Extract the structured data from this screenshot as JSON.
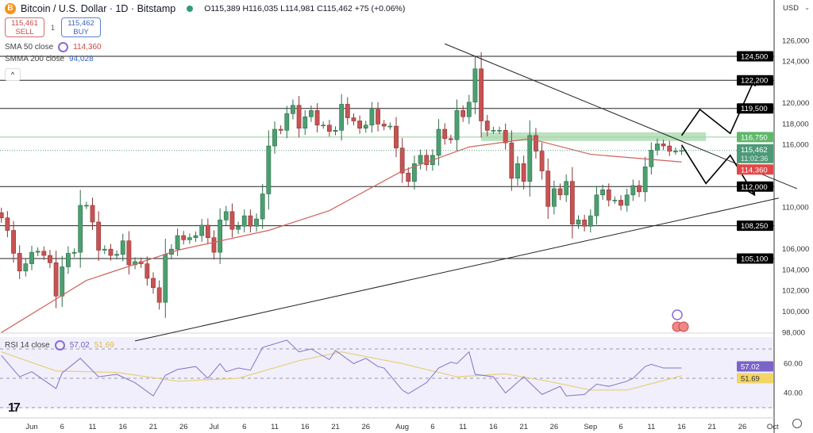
{
  "header": {
    "coin_glyph": "B",
    "title": "Bitcoin / U.S. Dollar · 1D · Bitstamp",
    "ohlc": "O115,389 H116,035 L114,981 C115,462 +75 (+0.06%)",
    "sell_price": "115,461",
    "sell_label": "SELL",
    "quantity": "1",
    "buy_price": "115,462",
    "buy_label": "BUY",
    "market_status_color": "#2e9c7a"
  },
  "indicators": {
    "sma50_label": "SMA 50 close",
    "sma50_value": "114,360",
    "smma200_label": "SMMA 200 close",
    "smma200_value": "94,028",
    "rsi_label": "RSI 14 close",
    "rsi_value": "57.02",
    "rsi_ma_value": "51.69"
  },
  "axis": {
    "currency": "USD"
  },
  "colors": {
    "up": "#4c9f70",
    "down": "#c65353",
    "sma50": "#d0625c",
    "rsi": "#7e75c7",
    "rsi_ma": "#e8cf7a",
    "support_band": "#9fd4a4"
  },
  "chart_data": {
    "type": "candlestick",
    "title": "Bitcoin / U.S. Dollar · 1D · Bitstamp",
    "ylim": [
      97000,
      128000
    ],
    "y_ticks": [
      "126,000",
      "124,000",
      "120,000",
      "118,000",
      "116,000",
      "110,000",
      "106,000",
      "104,000",
      "102,000",
      "100,000",
      "98,000"
    ],
    "x_ticks": [
      "Jun",
      "6",
      "11",
      "16",
      "21",
      "26",
      "Jul",
      "6",
      "11",
      "16",
      "21",
      "26",
      "Aug",
      "6",
      "11",
      "16",
      "21",
      "26",
      "Sep",
      "6",
      "11",
      "16",
      "21",
      "26",
      "Oct"
    ],
    "close": [
      [
        "05-27",
        109.0
      ],
      [
        "05-28",
        107.8
      ],
      [
        "05-29",
        105.6
      ],
      [
        "05-30",
        103.9
      ],
      [
        "05-31",
        104.6
      ],
      [
        "06-01",
        105.7
      ],
      [
        "06-02",
        105.8
      ],
      [
        "06-03",
        105.4
      ],
      [
        "06-04",
        104.7
      ],
      [
        "06-05",
        101.5
      ],
      [
        "06-06",
        104.3
      ],
      [
        "06-07",
        105.6
      ],
      [
        "06-08",
        105.7
      ],
      [
        "06-09",
        110.2
      ],
      [
        "06-10",
        110.2
      ],
      [
        "06-11",
        108.6
      ],
      [
        "06-12",
        105.9
      ],
      [
        "06-13",
        106.0
      ],
      [
        "06-14",
        105.4
      ],
      [
        "06-15",
        105.5
      ],
      [
        "06-16",
        106.8
      ],
      [
        "06-17",
        104.5
      ],
      [
        "06-18",
        104.8
      ],
      [
        "06-19",
        104.6
      ],
      [
        "06-20",
        103.2
      ],
      [
        "06-21",
        102.3
      ],
      [
        "06-22",
        100.9
      ],
      [
        "06-23",
        105.5
      ],
      [
        "06-24",
        106.0
      ],
      [
        "06-25",
        107.3
      ],
      [
        "06-26",
        106.9
      ],
      [
        "06-27",
        107.1
      ],
      [
        "06-28",
        107.3
      ],
      [
        "06-29",
        108.3
      ],
      [
        "06-30",
        107.1
      ],
      [
        "07-01",
        105.7
      ],
      [
        "07-02",
        108.8
      ],
      [
        "07-03",
        109.6
      ],
      [
        "07-04",
        107.9
      ],
      [
        "07-05",
        108.2
      ],
      [
        "07-06",
        109.2
      ],
      [
        "07-07",
        108.2
      ],
      [
        "07-08",
        108.9
      ],
      [
        "07-09",
        111.3
      ],
      [
        "07-10",
        115.9
      ],
      [
        "07-11",
        117.5
      ],
      [
        "07-12",
        117.4
      ],
      [
        "07-13",
        119.0
      ],
      [
        "07-14",
        119.8
      ],
      [
        "07-15",
        117.6
      ],
      [
        "07-16",
        118.7
      ],
      [
        "07-17",
        119.3
      ],
      [
        "07-18",
        117.9
      ],
      [
        "07-19",
        117.9
      ],
      [
        "07-20",
        117.3
      ],
      [
        "07-21",
        117.4
      ],
      [
        "07-22",
        119.9
      ],
      [
        "07-23",
        118.6
      ],
      [
        "07-24",
        118.3
      ],
      [
        "07-25",
        117.6
      ],
      [
        "07-26",
        117.9
      ],
      [
        "07-27",
        119.4
      ],
      [
        "07-28",
        118.0
      ],
      [
        "07-29",
        117.8
      ],
      [
        "07-30",
        117.8
      ],
      [
        "07-31",
        115.7
      ],
      [
        "08-01",
        113.3
      ],
      [
        "08-02",
        112.5
      ],
      [
        "08-03",
        114.2
      ],
      [
        "08-04",
        115.0
      ],
      [
        "08-05",
        114.1
      ],
      [
        "08-06",
        115.0
      ],
      [
        "08-07",
        117.5
      ],
      [
        "08-08",
        116.6
      ],
      [
        "08-09",
        116.5
      ],
      [
        "08-10",
        119.3
      ],
      [
        "08-11",
        118.7
      ],
      [
        "08-12",
        120.1
      ],
      [
        "08-13",
        123.3
      ],
      [
        "08-14",
        118.3
      ],
      [
        "08-15",
        117.4
      ],
      [
        "08-16",
        117.4
      ],
      [
        "08-17",
        117.4
      ],
      [
        "08-18",
        116.2
      ],
      [
        "08-19",
        112.8
      ],
      [
        "08-20",
        114.2
      ],
      [
        "08-21",
        112.5
      ],
      [
        "08-22",
        116.9
      ],
      [
        "08-23",
        115.4
      ],
      [
        "08-24",
        113.5
      ],
      [
        "08-25",
        110.1
      ],
      [
        "08-26",
        111.8
      ],
      [
        "08-27",
        111.2
      ],
      [
        "08-28",
        112.5
      ],
      [
        "08-29",
        108.4
      ],
      [
        "08-30",
        108.8
      ],
      [
        "08-31",
        108.2
      ],
      [
        "09-01",
        109.2
      ],
      [
        "09-02",
        111.2
      ],
      [
        "09-03",
        111.7
      ],
      [
        "09-04",
        110.7
      ],
      [
        "09-05",
        110.7
      ],
      [
        "09-06",
        110.2
      ],
      [
        "09-07",
        111.2
      ],
      [
        "09-08",
        112.1
      ],
      [
        "09-09",
        111.5
      ],
      [
        "09-10",
        113.9
      ],
      [
        "09-11",
        115.5
      ],
      [
        "09-12",
        116.1
      ],
      [
        "09-13",
        115.9
      ],
      [
        "09-14",
        115.4
      ],
      [
        "09-15",
        115.4
      ],
      [
        "09-16",
        115.462
      ]
    ],
    "sma50": [
      [
        "05-27",
        98.0
      ],
      [
        "06-10",
        103.0
      ],
      [
        "06-25",
        105.9
      ],
      [
        "07-10",
        107.8
      ],
      [
        "07-20",
        109.7
      ],
      [
        "08-01",
        113.5
      ],
      [
        "08-12",
        115.8
      ],
      [
        "08-22",
        116.6
      ],
      [
        "09-01",
        115.1
      ],
      [
        "09-16",
        114.36
      ]
    ],
    "horizontal_levels": [
      {
        "value": 124500,
        "label": "124,500"
      },
      {
        "value": 122200,
        "label": "122,200"
      },
      {
        "value": 119500,
        "label": "119,500"
      },
      {
        "value": 112000,
        "label": "112,000"
      },
      {
        "value": 108250,
        "label": "108,250"
      },
      {
        "value": 105100,
        "label": "105,100"
      }
    ],
    "support_band": {
      "value": 116750,
      "label": "116,750",
      "from": "08-14",
      "to": "09-20"
    },
    "last_price": {
      "value": "115,462",
      "countdown": "11:02:36"
    },
    "sma50_last": "114,360",
    "trendlines": [
      {
        "name": "descending-resistance",
        "from": [
          "08-08",
          125700
        ],
        "to": [
          "10-05",
          111800
        ]
      },
      {
        "name": "ascending-support",
        "from": [
          "06-18",
          97200
        ],
        "to": [
          "10-02",
          110900
        ]
      }
    ],
    "scenario_arrows": [
      {
        "name": "bullish",
        "points": [
          [
            "09-16",
            116.9
          ],
          [
            "09-19",
            119.4
          ],
          [
            "09-24",
            117.1
          ],
          [
            "09-28",
            122.3
          ]
        ]
      },
      {
        "name": "bearish",
        "points": [
          [
            "09-16",
            116.0
          ],
          [
            "09-20",
            112.3
          ],
          [
            "09-24",
            115.0
          ],
          [
            "09-28",
            111.2
          ]
        ]
      }
    ],
    "rsi": {
      "levels": [
        70,
        50,
        30
      ],
      "axis_labels": [
        "60.00",
        "40.00"
      ],
      "values": [
        [
          "05-27",
          65.5
        ],
        [
          "05-30",
          51
        ],
        [
          "06-01",
          54.5
        ],
        [
          "06-05",
          43
        ],
        [
          "06-06",
          53.6
        ],
        [
          "06-09",
          63.6
        ],
        [
          "06-12",
          51
        ],
        [
          "06-15",
          52.7
        ],
        [
          "06-18",
          47
        ],
        [
          "06-21",
          38
        ],
        [
          "06-23",
          52
        ],
        [
          "06-25",
          56
        ],
        [
          "06-28",
          58
        ],
        [
          "06-30",
          50
        ],
        [
          "07-02",
          60
        ],
        [
          "07-03",
          54.5
        ],
        [
          "07-05",
          57
        ],
        [
          "07-07",
          55.5
        ],
        [
          "07-09",
          71
        ],
        [
          "07-13",
          76
        ],
        [
          "07-15",
          68
        ],
        [
          "07-17",
          70
        ],
        [
          "07-20",
          62.7
        ],
        [
          "07-21",
          69
        ],
        [
          "07-24",
          60
        ],
        [
          "07-26",
          63.6
        ],
        [
          "07-28",
          58
        ],
        [
          "07-29",
          57
        ],
        [
          "08-01",
          42
        ],
        [
          "08-02",
          39.5
        ],
        [
          "08-05",
          47
        ],
        [
          "08-07",
          57
        ],
        [
          "08-09",
          61
        ],
        [
          "08-10",
          60
        ],
        [
          "08-12",
          68
        ],
        [
          "08-13",
          52.7
        ],
        [
          "08-16",
          51
        ],
        [
          "08-18",
          40
        ],
        [
          "08-19",
          43.6
        ],
        [
          "08-21",
          51
        ],
        [
          "08-24",
          39
        ],
        [
          "08-27",
          44.5
        ],
        [
          "08-28",
          38
        ],
        [
          "08-31",
          39
        ],
        [
          "09-02",
          46
        ],
        [
          "09-04",
          44.5
        ],
        [
          "09-07",
          48
        ],
        [
          "09-08",
          50
        ],
        [
          "09-10",
          58
        ],
        [
          "09-11",
          59.5
        ],
        [
          "09-13",
          57
        ],
        [
          "09-16",
          57.02
        ]
      ],
      "ma": [
        [
          "05-27",
          68
        ],
        [
          "06-05",
          55
        ],
        [
          "06-15",
          54
        ],
        [
          "06-25",
          48
        ],
        [
          "07-05",
          50
        ],
        [
          "07-15",
          62
        ],
        [
          "07-22",
          68
        ],
        [
          "08-01",
          60
        ],
        [
          "08-10",
          51
        ],
        [
          "08-18",
          53
        ],
        [
          "08-25",
          48
        ],
        [
          "09-01",
          42
        ],
        [
          "09-07",
          42
        ],
        [
          "09-16",
          51.69
        ]
      ]
    }
  }
}
